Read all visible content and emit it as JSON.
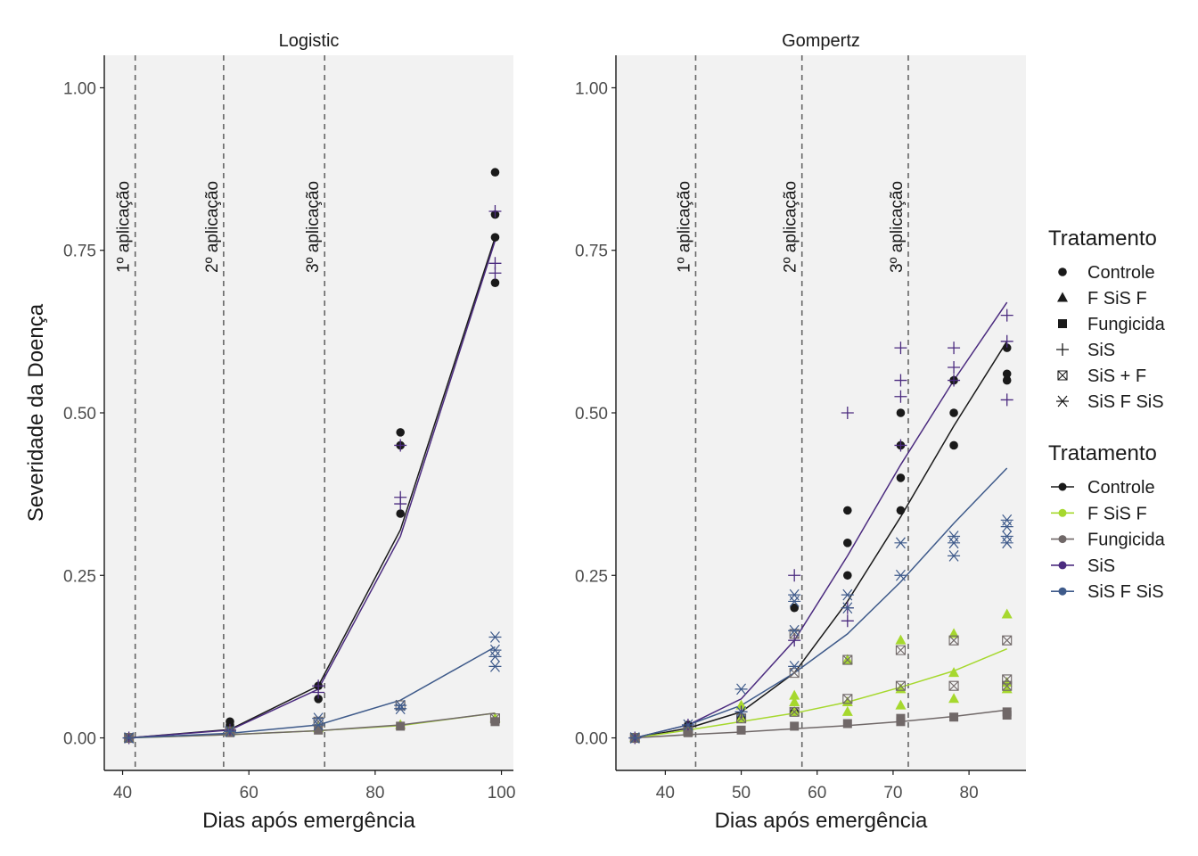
{
  "chart_data": [
    {
      "type": "scatter",
      "title": "Logistic",
      "xlabel": "Dias após emergência",
      "ylabel": "Severidade da Doença",
      "xlim": [
        37.1,
        101.9
      ],
      "ylim": [
        -0.05,
        1.05
      ],
      "x_ticks": [
        40,
        60,
        80,
        100
      ],
      "x_tick_labels": [
        "40",
        "60",
        "80",
        "100"
      ],
      "y_ticks": [
        0,
        0.25,
        0.5,
        0.75,
        1.0
      ],
      "y_tick_labels": [
        "0.00",
        "0.25",
        "0.50",
        "0.75",
        "1.00"
      ],
      "vlines": [
        {
          "x": 42,
          "label": "1º aplicação"
        },
        {
          "x": 56,
          "label": "2º aplicação"
        },
        {
          "x": 72,
          "label": "3º aplicação"
        }
      ],
      "points": [
        {
          "treatment": "Controle",
          "x": [
            41,
            57,
            57,
            71,
            71,
            84,
            84,
            84,
            99,
            99,
            99,
            99
          ],
          "y": [
            0.0,
            0.02,
            0.025,
            0.06,
            0.08,
            0.345,
            0.45,
            0.47,
            0.7,
            0.77,
            0.805,
            0.87
          ]
        },
        {
          "treatment": "F SiS F",
          "x": [
            41,
            57,
            71,
            84,
            99
          ],
          "y": [
            0.0,
            0.01,
            0.015,
            0.02,
            0.03
          ]
        },
        {
          "treatment": "Fungicida",
          "x": [
            41,
            57,
            71,
            84,
            99
          ],
          "y": [
            0.0,
            0.008,
            0.012,
            0.018,
            0.025
          ]
        },
        {
          "treatment": "SiS",
          "x": [
            41,
            57,
            71,
            71,
            84,
            84,
            84,
            99,
            99,
            99
          ],
          "y": [
            0.0,
            0.012,
            0.07,
            0.08,
            0.36,
            0.37,
            0.45,
            0.715,
            0.73,
            0.81
          ]
        },
        {
          "treatment": "SiS + F",
          "x": [
            41,
            57,
            71,
            84,
            99
          ],
          "y": [
            0.0,
            0.01,
            0.025,
            0.05,
            0.03
          ]
        },
        {
          "treatment": "SiS F SiS",
          "x": [
            41,
            57,
            71,
            71,
            84,
            84,
            99,
            99,
            99,
            99
          ],
          "y": [
            0.0,
            0.01,
            0.02,
            0.03,
            0.045,
            0.05,
            0.11,
            0.125,
            0.135,
            0.155
          ]
        }
      ],
      "series": [
        {
          "name": "Controle",
          "x": [
            41,
            57,
            71,
            84,
            99
          ],
          "y": [
            0.0,
            0.013,
            0.08,
            0.32,
            0.77
          ]
        },
        {
          "name": "F SiS F",
          "x": [
            41,
            57,
            71,
            84,
            99
          ],
          "y": [
            0.0,
            0.005,
            0.011,
            0.019,
            0.038
          ]
        },
        {
          "name": "Fungicida",
          "x": [
            41,
            57,
            71,
            84,
            99
          ],
          "y": [
            0.0,
            0.005,
            0.011,
            0.02,
            0.038
          ]
        },
        {
          "name": "SiS",
          "x": [
            41,
            57,
            71,
            84,
            99
          ],
          "y": [
            0.0,
            0.012,
            0.075,
            0.31,
            0.765
          ]
        },
        {
          "name": "SiS F SiS",
          "x": [
            41,
            57,
            71,
            84,
            99
          ],
          "y": [
            0.0,
            0.007,
            0.02,
            0.058,
            0.14
          ]
        }
      ]
    },
    {
      "type": "scatter",
      "title": "Gompertz",
      "xlabel": "Dias após emergência",
      "ylabel": "",
      "xlim": [
        33.5,
        87.5
      ],
      "ylim": [
        -0.05,
        1.05
      ],
      "x_ticks": [
        40,
        50,
        60,
        70,
        80
      ],
      "x_tick_labels": [
        "40",
        "50",
        "60",
        "70",
        "80"
      ],
      "y_ticks": [
        0,
        0.25,
        0.5,
        0.75,
        1.0
      ],
      "y_tick_labels": [
        "0.00",
        "0.25",
        "0.50",
        "0.75",
        "1.00"
      ],
      "vlines": [
        {
          "x": 44,
          "label": "1º aplicação"
        },
        {
          "x": 58,
          "label": "2º aplicação"
        },
        {
          "x": 72,
          "label": "3º aplicação"
        }
      ],
      "points": [
        {
          "treatment": "Controle",
          "x": [
            36,
            43,
            50,
            57,
            57,
            64,
            64,
            64,
            71,
            71,
            71,
            71,
            78,
            78,
            78,
            85,
            85,
            85
          ],
          "y": [
            0.0,
            0.02,
            0.03,
            0.04,
            0.2,
            0.25,
            0.3,
            0.35,
            0.35,
            0.4,
            0.45,
            0.5,
            0.45,
            0.5,
            0.55,
            0.55,
            0.56,
            0.6
          ]
        },
        {
          "treatment": "F SiS F",
          "x": [
            36,
            43,
            50,
            50,
            57,
            57,
            57,
            64,
            64,
            64,
            71,
            71,
            71,
            78,
            78,
            78,
            85,
            85,
            85
          ],
          "y": [
            0.0,
            0.01,
            0.03,
            0.05,
            0.04,
            0.055,
            0.065,
            0.04,
            0.055,
            0.12,
            0.05,
            0.075,
            0.15,
            0.06,
            0.1,
            0.16,
            0.075,
            0.085,
            0.19
          ]
        },
        {
          "treatment": "Fungicida",
          "x": [
            36,
            43,
            50,
            57,
            64,
            71,
            71,
            78,
            85,
            85
          ],
          "y": [
            0.0,
            0.008,
            0.012,
            0.018,
            0.022,
            0.025,
            0.03,
            0.032,
            0.035,
            0.04
          ]
        },
        {
          "treatment": "SiS",
          "x": [
            36,
            43,
            50,
            57,
            57,
            64,
            64,
            64,
            71,
            71,
            71,
            71,
            78,
            78,
            78,
            85,
            85,
            85
          ],
          "y": [
            0.0,
            0.02,
            0.04,
            0.15,
            0.25,
            0.18,
            0.2,
            0.5,
            0.45,
            0.525,
            0.55,
            0.6,
            0.55,
            0.57,
            0.6,
            0.52,
            0.61,
            0.65
          ]
        },
        {
          "treatment": "SiS + F",
          "x": [
            36,
            43,
            50,
            57,
            57,
            57,
            64,
            64,
            71,
            71,
            78,
            78,
            85,
            85,
            85
          ],
          "y": [
            0.0,
            0.01,
            0.03,
            0.04,
            0.1,
            0.16,
            0.06,
            0.12,
            0.08,
            0.135,
            0.08,
            0.15,
            0.08,
            0.09,
            0.15
          ]
        },
        {
          "treatment": "SiS F SiS",
          "x": [
            36,
            43,
            50,
            50,
            57,
            57,
            57,
            57,
            64,
            64,
            71,
            71,
            78,
            78,
            78,
            85,
            85,
            85,
            85
          ],
          "y": [
            0.0,
            0.02,
            0.04,
            0.075,
            0.11,
            0.165,
            0.21,
            0.22,
            0.2,
            0.22,
            0.25,
            0.3,
            0.28,
            0.3,
            0.31,
            0.3,
            0.31,
            0.325,
            0.335
          ]
        }
      ],
      "series": [
        {
          "name": "Controle",
          "x": [
            36,
            43,
            50,
            57,
            64,
            71,
            78,
            85
          ],
          "y": [
            0.0,
            0.015,
            0.04,
            0.1,
            0.21,
            0.34,
            0.48,
            0.61
          ]
        },
        {
          "name": "F SiS F",
          "x": [
            36,
            43,
            50,
            57,
            64,
            71,
            78,
            85
          ],
          "y": [
            0.0,
            0.012,
            0.025,
            0.038,
            0.055,
            0.078,
            0.103,
            0.137
          ]
        },
        {
          "name": "Fungicida",
          "x": [
            36,
            43,
            50,
            57,
            64,
            71,
            78,
            85
          ],
          "y": [
            0.0,
            0.005,
            0.009,
            0.014,
            0.019,
            0.025,
            0.033,
            0.043
          ]
        },
        {
          "name": "SiS",
          "x": [
            36,
            43,
            50,
            57,
            64,
            71,
            78,
            85
          ],
          "y": [
            0.0,
            0.02,
            0.06,
            0.15,
            0.28,
            0.42,
            0.55,
            0.67
          ]
        },
        {
          "name": "SiS F SiS",
          "x": [
            36,
            43,
            50,
            57,
            64,
            71,
            78,
            85
          ],
          "y": [
            0.0,
            0.02,
            0.05,
            0.1,
            0.16,
            0.24,
            0.33,
            0.415
          ]
        }
      ]
    }
  ],
  "legend_shapes": {
    "title": "Tratamento",
    "items": [
      {
        "label": "Controle",
        "shape": "circle"
      },
      {
        "label": "F SiS F",
        "shape": "triangle"
      },
      {
        "label": "Fungicida",
        "shape": "square"
      },
      {
        "label": "SiS",
        "shape": "plus"
      },
      {
        "label": "SiS + F",
        "shape": "square-x"
      },
      {
        "label": "SiS F SiS",
        "shape": "asterisk"
      }
    ]
  },
  "legend_colors": {
    "title": "Tratamento",
    "items": [
      {
        "label": "Controle",
        "color": "#1a1a1a"
      },
      {
        "label": "F SiS F",
        "color": "#a6d82e"
      },
      {
        "label": "Fungicida",
        "color": "#706868"
      },
      {
        "label": "SiS",
        "color": "#4b2b7f"
      },
      {
        "label": "SiS F SiS",
        "color": "#3e5a8a"
      }
    ]
  },
  "colors": {
    "panel_bg": "#f2f2f2",
    "vline": "#666666",
    "axis": "#1a1a1a"
  },
  "point_styles": {
    "Controle": {
      "shape": "circle",
      "color": "#1a1a1a"
    },
    "F SiS F": {
      "shape": "triangle",
      "color": "#a6d82e"
    },
    "Fungicida": {
      "shape": "square",
      "color": "#706868"
    },
    "SiS": {
      "shape": "plus",
      "color": "#4b2b7f"
    },
    "SiS + F": {
      "shape": "square-x",
      "color": "#706868"
    },
    "SiS F SiS": {
      "shape": "asterisk",
      "color": "#3e5a8a"
    }
  }
}
